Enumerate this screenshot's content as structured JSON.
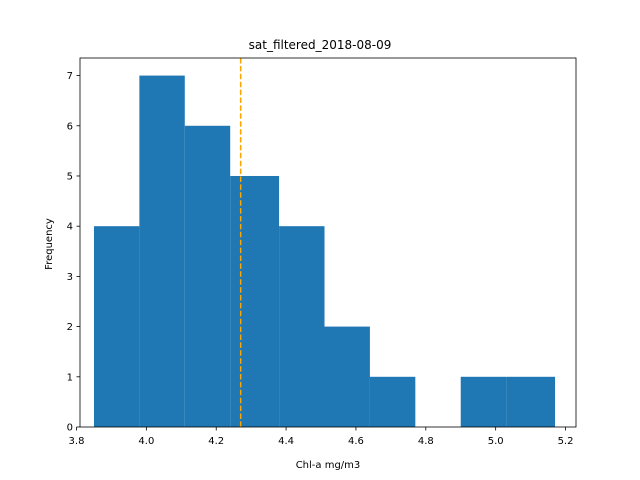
{
  "chart_data": {
    "type": "bar",
    "subtype": "histogram",
    "title": "sat_filtered_2018-08-09",
    "xlabel": "Chl-a mg/m3",
    "ylabel": "Frequency",
    "xlim": [
      3.81,
      5.23
    ],
    "ylim": [
      0,
      7.35
    ],
    "xticks": [
      "3.8",
      "4.0",
      "4.2",
      "4.4",
      "4.6",
      "4.8",
      "5.0",
      "5.2"
    ],
    "yticks": [
      "0",
      "1",
      "2",
      "3",
      "4",
      "5",
      "6",
      "7"
    ],
    "bins": [
      {
        "x0": 3.85,
        "x1": 3.98,
        "count": 4
      },
      {
        "x0": 3.98,
        "x1": 4.11,
        "count": 7
      },
      {
        "x0": 4.11,
        "x1": 4.24,
        "count": 6
      },
      {
        "x0": 4.24,
        "x1": 4.38,
        "count": 5
      },
      {
        "x0": 4.38,
        "x1": 4.51,
        "count": 4
      },
      {
        "x0": 4.51,
        "x1": 4.64,
        "count": 2
      },
      {
        "x0": 4.64,
        "x1": 4.77,
        "count": 1
      },
      {
        "x0": 4.77,
        "x1": 4.9,
        "count": 0
      },
      {
        "x0": 4.9,
        "x1": 5.03,
        "count": 1
      },
      {
        "x0": 5.03,
        "x1": 5.17,
        "count": 1
      }
    ],
    "mean_line": {
      "x": 4.27,
      "style": "dashed",
      "color": "#ffa500"
    },
    "bar_color": "#1f77b4",
    "grid": false,
    "legend": false
  }
}
